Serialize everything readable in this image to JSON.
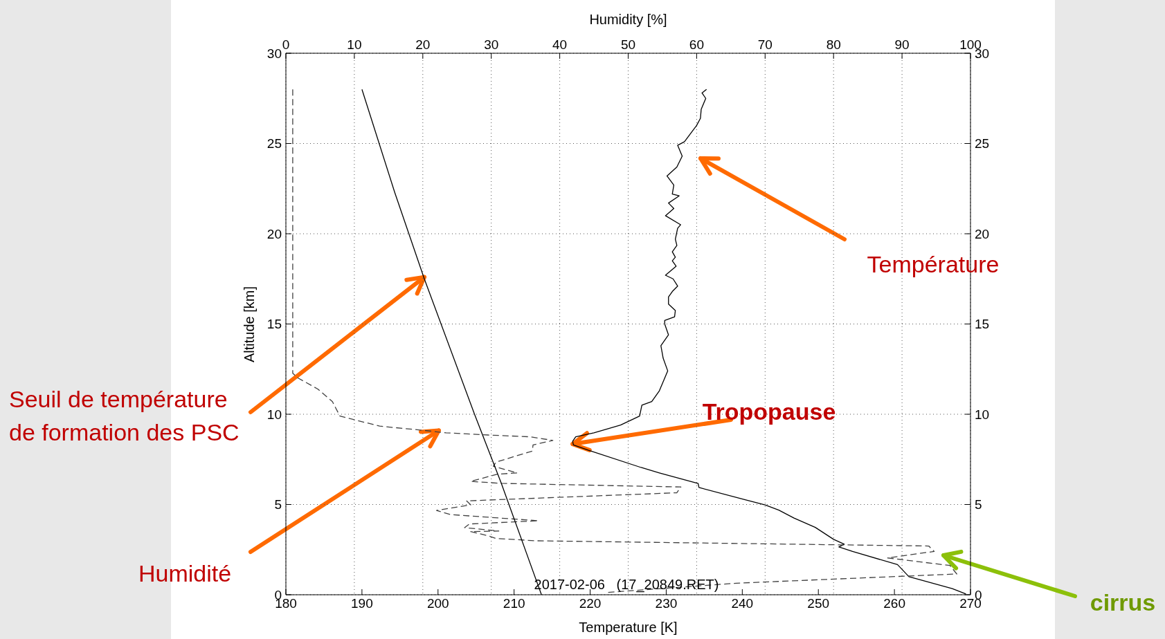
{
  "chart_data": {
    "type": "line",
    "xlabel": "Temperature [K]",
    "x2label": "Humidity [%]",
    "ylabel": "Altitude [km]",
    "xlim": [
      180,
      270
    ],
    "xticks": [
      180,
      190,
      200,
      210,
      220,
      230,
      240,
      250,
      260,
      270
    ],
    "x2lim": [
      0,
      100
    ],
    "x2ticks": [
      0,
      10,
      20,
      30,
      40,
      50,
      60,
      70,
      80,
      90,
      100
    ],
    "ylim": [
      0,
      30
    ],
    "yticks": [
      0,
      5,
      10,
      15,
      20,
      25,
      30
    ],
    "y2lim": [
      0,
      30
    ],
    "y2ticks": [
      0,
      5,
      10,
      15,
      20,
      25,
      30
    ],
    "grid": true,
    "marker": "none",
    "series": [
      {
        "color": "#000000",
        "line_style": "solid",
        "x": [
          235.3,
          234.7,
          235.2,
          234.6,
          234.5,
          234.0,
          232.4,
          231.5,
          232.1,
          231.4,
          230.1,
          231.0,
          230.8,
          231.7,
          230.3,
          231.0,
          229.9,
          231.9,
          231.5,
          231.2,
          231.4,
          230.8,
          231.2,
          230.8,
          231.3,
          229.9,
          230.9,
          231.5,
          230.8,
          230.3,
          230.3,
          231.2,
          231.1,
          229.8,
          229.8,
          230.3,
          229.3,
          229.6,
          230.2,
          229.8,
          229.1,
          228.1,
          226.8,
          226.5,
          224.0,
          220.5,
          218.1,
          217.7,
          217.8,
          219.8,
          226.7,
          229.1,
          234.2,
          234.3,
          240.2,
          243.0,
          244.8,
          246.8,
          249.6,
          252.0,
          253.4,
          252.7,
          254.5,
          260.4,
          260.9,
          261.9,
          267.6,
          269.4
        ],
        "values": [
          28.0,
          27.8,
          27.5,
          26.9,
          26.4,
          26.0,
          25.1,
          24.9,
          24.3,
          23.7,
          23.2,
          22.7,
          22.2,
          22.1,
          21.7,
          21.4,
          21.0,
          20.5,
          20.3,
          19.7,
          19.35,
          19.0,
          18.7,
          18.5,
          18.2,
          17.7,
          17.5,
          17.1,
          16.8,
          16.5,
          16.1,
          15.75,
          15.4,
          15.2,
          15.0,
          14.4,
          13.8,
          13.1,
          12.4,
          12.0,
          11.3,
          10.7,
          10.5,
          9.9,
          9.4,
          8.97,
          8.75,
          8.5,
          8.3,
          8.0,
          7.05,
          6.75,
          6.16,
          5.94,
          5.28,
          4.98,
          4.69,
          4.25,
          3.73,
          3.07,
          2.8,
          2.65,
          2.4,
          1.67,
          1.45,
          1.0,
          0.34,
          0.04
        ]
      },
      {
        "color": "#404040",
        "line_style": "dashed",
        "axis": "x2",
        "x": [
          1.0,
          1.0,
          1.8,
          4.65,
          6.8,
          7.2,
          7.9,
          13.7,
          20.3,
          23.4,
          29.5,
          35.7,
          39.0,
          36.1,
          36.0,
          30.7,
          30.3,
          33.8,
          30.9,
          27.0,
          31.5,
          57.7,
          57.1,
          26.4,
          27.0,
          22.0,
          24.1,
          36.9,
          26.8,
          26.1,
          31.1,
          27.0,
          29.5,
          30.7,
          36.5,
          93.9,
          94.7,
          87.9,
          97.0,
          98.0,
          65.8,
          46.6
        ],
        "values": [
          28.0,
          12.27,
          12.0,
          11.4,
          10.7,
          10.4,
          9.9,
          9.34,
          9.1,
          8.97,
          8.85,
          8.75,
          8.55,
          8.3,
          7.96,
          7.35,
          7.12,
          6.75,
          6.68,
          6.28,
          6.17,
          5.97,
          5.65,
          5.2,
          4.98,
          4.67,
          4.44,
          4.1,
          3.92,
          3.72,
          3.53,
          3.5,
          3.27,
          3.12,
          2.99,
          2.7,
          2.4,
          2.04,
          1.62,
          1.15,
          0.64,
          0.12
        ]
      },
      {
        "color": "#000000",
        "line_style": "solid",
        "x": [
          190,
          194.3,
          198.2,
          204.8,
          208.3,
          213.6
        ],
        "values": [
          28,
          22.3,
          17.5,
          10,
          6.2,
          0
        ]
      }
    ],
    "annotations": [
      "Température",
      {
        "text": "Tropopause",
        "x": 217.7,
        "y": 8.35
      },
      {
        "text": "Seuil de température\nde formation des PSC",
        "x": 198.2,
        "y": 17.6
      },
      {
        "text": "Humidité",
        "x": 200.1,
        "y": 9.1
      },
      "cirrus",
      "2017-02-06   (17_20849.RET)"
    ]
  }
}
